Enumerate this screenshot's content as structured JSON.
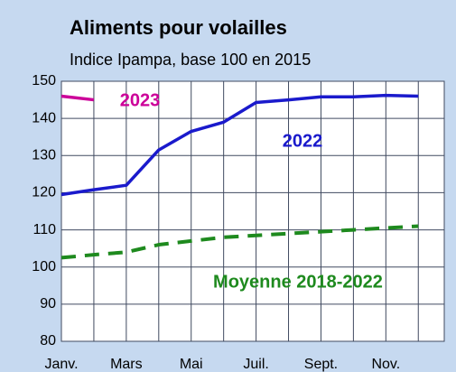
{
  "chart_data": {
    "type": "line",
    "title": "Aliments pour volailles",
    "subtitle": "Indice Ipampa, base 100 en 2015",
    "categories": [
      "Janv.",
      null,
      "Mars",
      null,
      "Mai",
      null,
      "Juil.",
      null,
      "Sept.",
      null,
      "Nov.",
      null
    ],
    "series": [
      {
        "name": "2023",
        "color": "#cc0099",
        "dashed": false,
        "values": [
          146,
          145,
          null,
          null,
          null,
          null,
          null,
          null,
          null,
          null,
          null,
          null
        ]
      },
      {
        "name": "2022",
        "color": "#1a1acc",
        "dashed": false,
        "values": [
          119.5,
          120.8,
          122,
          131.5,
          136.5,
          139,
          144.3,
          145,
          145.8,
          145.8,
          146.2,
          146
        ]
      },
      {
        "name": "Moyenne 2018-2022",
        "color": "#1e8a1e",
        "dashed": true,
        "values": [
          102.5,
          103.3,
          104,
          106,
          107,
          108,
          108.5,
          109,
          109.5,
          110,
          110.5,
          111
        ]
      }
    ],
    "ylim": [
      80,
      150
    ],
    "yticks": [
      80,
      90,
      100,
      110,
      120,
      130,
      140,
      150
    ],
    "grid": true
  }
}
